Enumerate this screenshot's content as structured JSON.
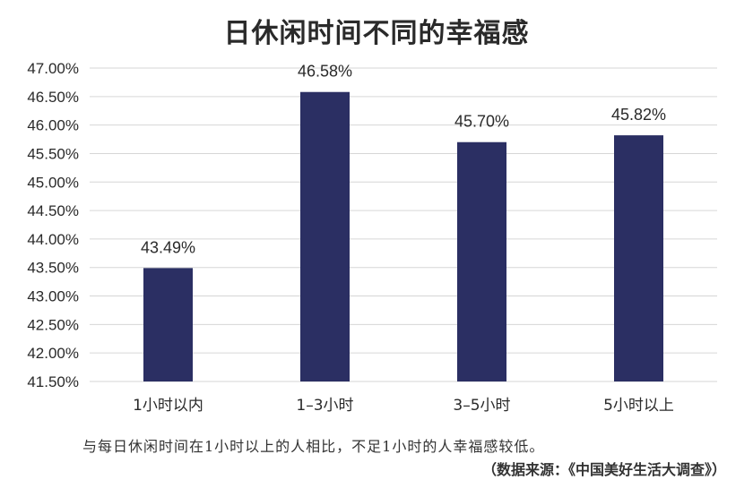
{
  "chart_data": {
    "type": "bar",
    "title": "日休闲时间不同的幸福感",
    "categories": [
      "1小时以内",
      "1–3小时",
      "3–5小时",
      "5小时以上"
    ],
    "values": [
      43.49,
      46.58,
      45.7,
      45.82
    ],
    "data_labels": [
      "43.49%",
      "46.58%",
      "45.70%",
      "45.82%"
    ],
    "ylim": [
      41.5,
      47.0
    ],
    "yticks": [
      41.5,
      42.0,
      42.5,
      43.0,
      43.5,
      44.0,
      44.5,
      45.0,
      45.5,
      46.0,
      46.5,
      47.0
    ],
    "ytick_labels": [
      "41.50%",
      "42.00%",
      "42.50%",
      "43.00%",
      "43.50%",
      "44.00%",
      "44.50%",
      "45.00%",
      "45.50%",
      "46.00%",
      "46.50%",
      "47.00%"
    ],
    "grid": true,
    "bar_color": "#2b2f63",
    "grid_color": "#d6d6d6"
  },
  "caption": "与每日休闲时间在1小时以上的人相比，不足1小时的人幸福感较低。",
  "source": "（数据来源：《中国美好生活大调查》）"
}
